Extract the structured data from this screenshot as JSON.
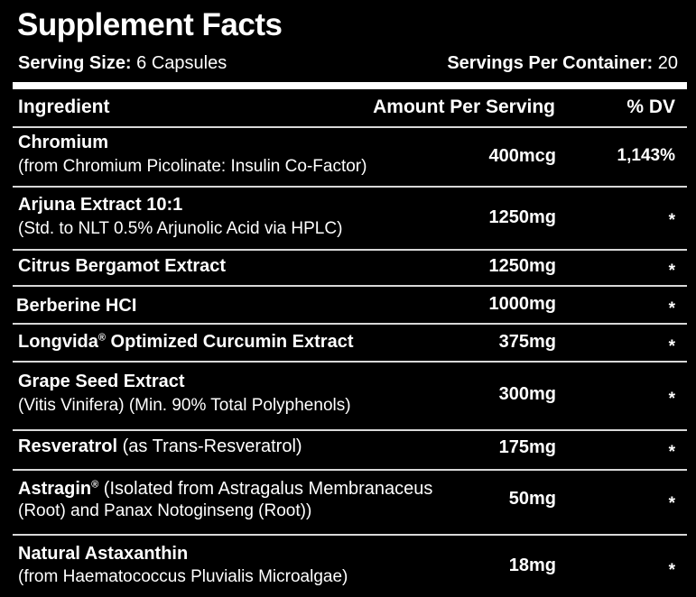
{
  "title": "Supplement Facts",
  "serving_size_label": "Serving Size:",
  "serving_size_value": "6 Capsules",
  "servings_per_container_label": "Servings Per Container:",
  "servings_per_container_value": "20",
  "headers": {
    "ingredient": "Ingredient",
    "amount": "Amount Per Serving",
    "dv": "% DV"
  },
  "rows": [
    {
      "name": "Chromium",
      "sub": "(from Chromium Picolinate: Insulin Co-Factor)",
      "amount": "400mcg",
      "dv": "1,143%"
    },
    {
      "name": "Arjuna Extract 10:1",
      "sub": "(Std. to NLT 0.5% Arjunolic Acid via HPLC)",
      "amount": "1250mg",
      "dv": "*"
    },
    {
      "name": "Citrus Bergamot Extract",
      "amount": "1250mg",
      "dv": "*"
    },
    {
      "name": "Berberine HCI",
      "amount": "1000mg",
      "dv": "*"
    },
    {
      "name": "Longvida",
      "mark": "®",
      "name_rest": " Optimized Curcumin Extract",
      "amount": "375mg",
      "dv": "*"
    },
    {
      "name": "Grape Seed Extract",
      "sub": "(Vitis Vinifera) (Min. 90% Total Polyphenols)",
      "amount": "300mg",
      "dv": "*"
    },
    {
      "name": "Resveratrol",
      "inline": " (as Trans-Resveratrol)",
      "amount": "175mg",
      "dv": "*"
    },
    {
      "name": "Astragin",
      "mark": "®",
      "inline": " (Isolated from Astragalus Membranaceus",
      "sub": "(Root) and Panax Notoginseng (Root))",
      "amount": "50mg",
      "dv": "*"
    },
    {
      "name": "Natural Astaxanthin",
      "sub": "(from Haematococcus Pluvialis Microalgae)",
      "amount": "18mg",
      "dv": "*"
    }
  ]
}
